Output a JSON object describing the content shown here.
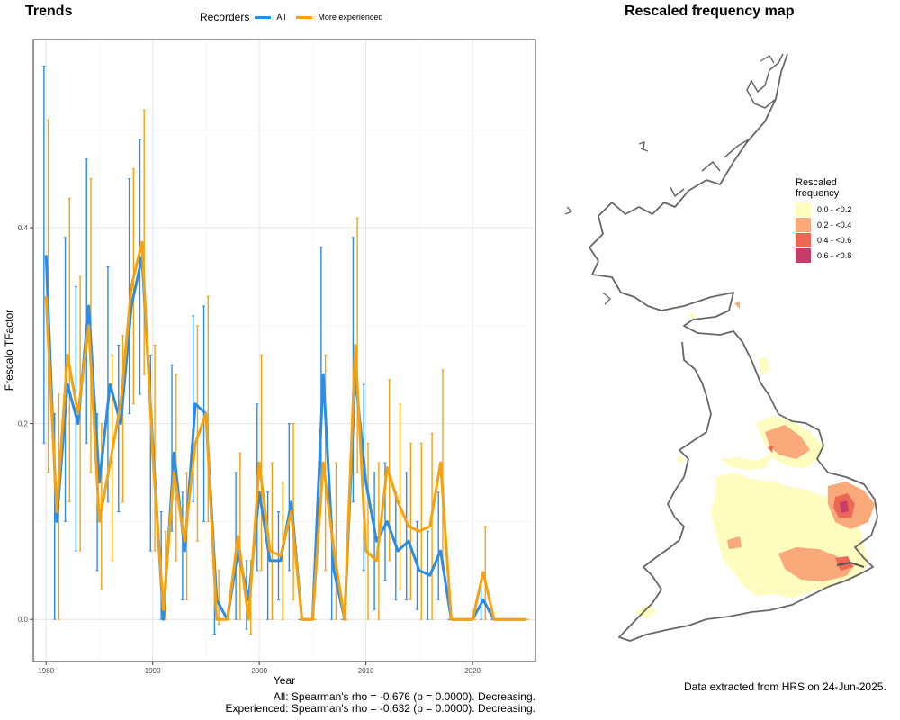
{
  "left_panel": {
    "title": "Trends"
  },
  "right_panel": {
    "title": "Rescaled frequency map",
    "note": "Data extracted from HRS on 24-Jun-2025."
  },
  "stats": {
    "all": "All: Spearman's rho = -0.676 (p = 0.0000). Decreasing.",
    "experienced": "Experienced: Spearman's rho = -0.632 (p = 0.0000). Decreasing."
  },
  "colors": {
    "all": "#2b8ce6",
    "experienced": "#f7a20c"
  },
  "chart_data": {
    "type": "line",
    "legend_title": "Recorders",
    "legend_position": "top",
    "xlabel": "Year",
    "ylabel": "Frescalo TFactor",
    "xlim": [
      1978.8,
      2025.9
    ],
    "ylim": [
      -0.043,
      0.592
    ],
    "x_ticks": [
      1980,
      1990,
      2000,
      2010,
      2020
    ],
    "y_ticks": [
      0.0,
      0.2,
      0.4
    ],
    "y_tick_labels": [
      "0.0",
      "0.2",
      "0.4"
    ],
    "grid": true,
    "series": [
      {
        "name": "All",
        "x": [
          1980,
          1981,
          1982,
          1983,
          1984,
          1985,
          1986,
          1987,
          1988,
          1989,
          1990,
          1991,
          1992,
          1993,
          1994,
          1995,
          1996,
          1997,
          1998,
          1999,
          2000,
          2001,
          2002,
          2003,
          2004,
          2005,
          2006,
          2007,
          2008,
          2009,
          2010,
          2011,
          2012,
          2013,
          2014,
          2015,
          2016,
          2017,
          2018,
          2019,
          2020,
          2021,
          2022,
          2023,
          2024,
          2025
        ],
        "y": [
          0.372,
          0.1,
          0.24,
          0.2,
          0.32,
          0.14,
          0.24,
          0.2,
          0.32,
          0.37,
          0.18,
          0.0,
          0.17,
          0.07,
          0.22,
          0.21,
          0.02,
          0.0,
          0.07,
          0.02,
          0.13,
          0.06,
          0.06,
          0.12,
          0.0,
          0.0,
          0.25,
          0.05,
          0.0,
          0.25,
          0.14,
          0.08,
          0.1,
          0.07,
          0.08,
          0.05,
          0.045,
          0.07,
          0.0,
          0.0,
          0.0,
          0.02,
          0.0,
          0.0,
          0.0,
          0.0
        ],
        "lower": [
          0.18,
          0.0,
          0.1,
          0.07,
          0.18,
          0.05,
          0.12,
          0.11,
          0.21,
          0.23,
          0.07,
          0.0,
          0.09,
          0.02,
          0.12,
          0.1,
          -0.015,
          0.0,
          0.0,
          -0.01,
          0.05,
          0.0,
          0.02,
          0.05,
          0.0,
          0.0,
          0.13,
          0.0,
          0.0,
          0.12,
          0.05,
          0.01,
          0.04,
          0.02,
          0.02,
          0.01,
          0.0,
          0.02,
          0.0,
          0.0,
          0.0,
          0.0,
          0.0,
          0.0,
          0.0,
          0.0
        ],
        "upper": [
          0.565,
          0.21,
          0.39,
          0.34,
          0.47,
          0.21,
          0.36,
          0.28,
          0.45,
          0.49,
          0.27,
          0.11,
          0.26,
          0.13,
          0.31,
          0.32,
          0.06,
          0.0,
          0.15,
          0.06,
          0.22,
          0.13,
          0.11,
          0.2,
          0.0,
          0.0,
          0.38,
          0.1,
          0.0,
          0.39,
          0.24,
          0.15,
          0.16,
          0.13,
          0.15,
          0.1,
          0.09,
          0.13,
          0.0,
          0.0,
          0.0,
          0.04,
          0.0,
          0.0,
          0.0,
          0.0
        ]
      },
      {
        "name": "More experienced",
        "x": [
          1980,
          1981,
          1982,
          1983,
          1984,
          1985,
          1986,
          1987,
          1988,
          1989,
          1990,
          1991,
          1992,
          1993,
          1994,
          1995,
          1996,
          1997,
          1998,
          1999,
          2000,
          2001,
          2002,
          2003,
          2004,
          2005,
          2006,
          2007,
          2008,
          2009,
          2010,
          2011,
          2012,
          2013,
          2014,
          2015,
          2016,
          2017,
          2018,
          2019,
          2020,
          2021,
          2022,
          2023,
          2024,
          2025
        ],
        "y": [
          0.33,
          0.11,
          0.27,
          0.21,
          0.3,
          0.1,
          0.16,
          0.22,
          0.34,
          0.385,
          0.17,
          0.01,
          0.15,
          0.08,
          0.18,
          0.21,
          0.0,
          0.0,
          0.085,
          0.0,
          0.16,
          0.07,
          0.065,
          0.11,
          0.0,
          0.0,
          0.16,
          0.07,
          0.0,
          0.28,
          0.07,
          0.06,
          0.155,
          0.12,
          0.095,
          0.09,
          0.095,
          0.16,
          0.0,
          0.0,
          0.0,
          0.048,
          0.0,
          0.0,
          0.0,
          0.0
        ],
        "lower": [
          0.15,
          0.0,
          0.12,
          0.07,
          0.15,
          0.03,
          0.06,
          0.12,
          0.22,
          0.25,
          0.07,
          0.0,
          0.06,
          0.02,
          0.08,
          0.1,
          -0.005,
          0.0,
          0.0,
          -0.015,
          0.05,
          0.0,
          0.0,
          0.02,
          0.0,
          0.0,
          0.05,
          0.0,
          0.0,
          0.15,
          0.0,
          0.0,
          0.06,
          0.03,
          0.02,
          0.0,
          0.0,
          0.06,
          0.0,
          0.0,
          0.0,
          0.0,
          0.0,
          0.0,
          0.0,
          0.0
        ],
        "upper": [
          0.51,
          0.23,
          0.43,
          0.35,
          0.45,
          0.2,
          0.27,
          0.29,
          0.46,
          0.52,
          0.28,
          0.09,
          0.25,
          0.15,
          0.3,
          0.33,
          0.05,
          0.0,
          0.17,
          0.06,
          0.27,
          0.16,
          0.14,
          0.2,
          0.0,
          0.0,
          0.27,
          0.16,
          0.0,
          0.41,
          0.18,
          0.16,
          0.245,
          0.22,
          0.18,
          0.18,
          0.19,
          0.255,
          0.0,
          0.0,
          0.0,
          0.095,
          0.0,
          0.0,
          0.0,
          0.0
        ]
      }
    ]
  },
  "map_legend": {
    "title_line1": "Rescaled",
    "title_line2": "frequency",
    "items": [
      {
        "label": "0.0 - <0.2",
        "color": "#fefcbf"
      },
      {
        "label": "0.2 - <0.4",
        "color": "#f9a97a"
      },
      {
        "label": "0.4 - <0.6",
        "color": "#ec6756"
      },
      {
        "label": "0.6 - <0.8",
        "color": "#c73d6a"
      }
    ]
  }
}
